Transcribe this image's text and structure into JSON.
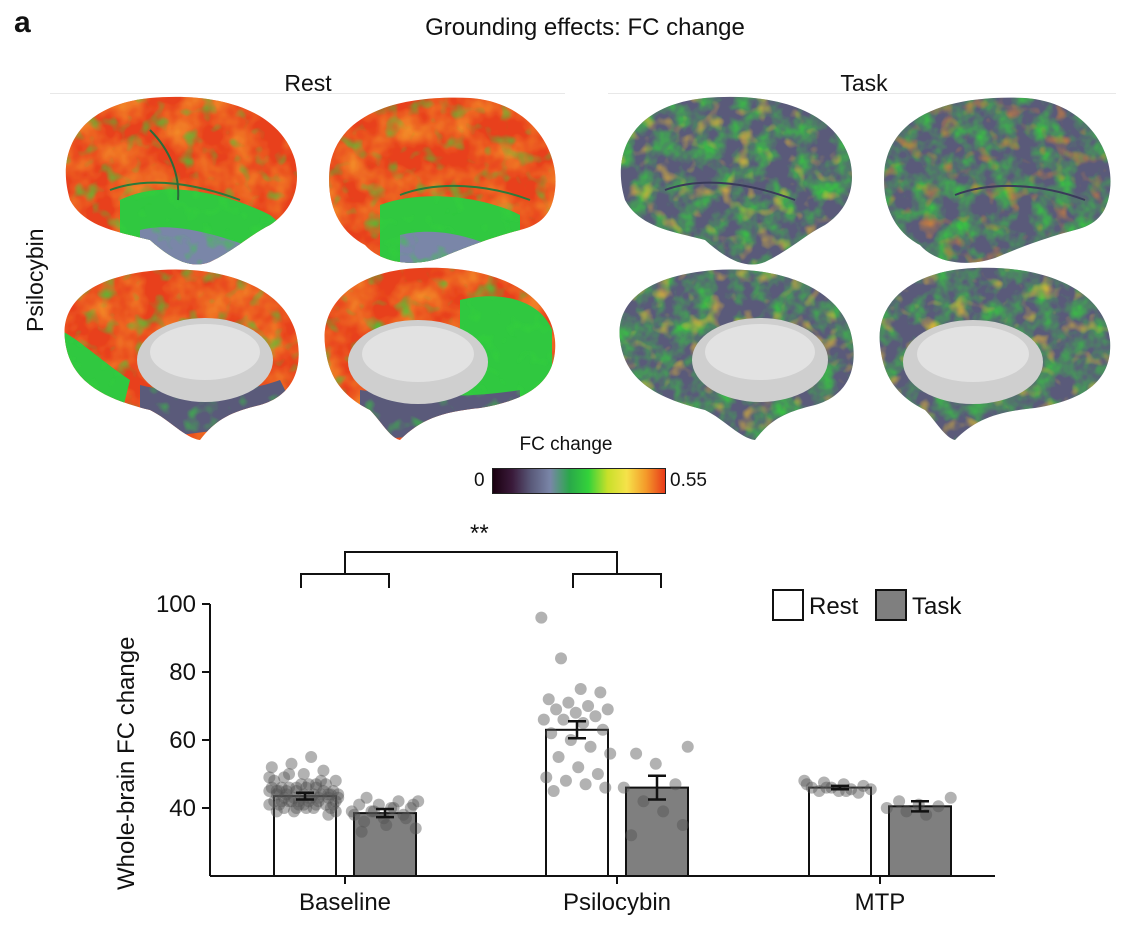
{
  "figure": {
    "panel_letter": "a",
    "title": "Grounding effects: FC change",
    "conditions": [
      "Rest",
      "Task"
    ],
    "row_label": "Psilocybin",
    "colorbar": {
      "title": "FC change",
      "min_label": "0",
      "max_label": "0.55",
      "stops": [
        "#1a0010",
        "#3a1a3a",
        "#5a5a7a",
        "#7a86a8",
        "#2aa84a",
        "#33d23a",
        "#c8e02a",
        "#f6e24a",
        "#f49a2a",
        "#e83a1a"
      ]
    },
    "significance": "**"
  },
  "chart_data": {
    "type": "bar",
    "ylabel": "Whole-brain FC change",
    "ylim": [
      20,
      100
    ],
    "yticks": [
      40,
      60,
      80,
      100
    ],
    "categories": [
      "Baseline",
      "Psilocybin",
      "MTP"
    ],
    "legend": {
      "position": "top-right",
      "entries": [
        "Rest",
        "Task"
      ]
    },
    "series": [
      {
        "name": "Rest",
        "color": "#ffffff",
        "values": [
          43.5,
          63,
          46
        ],
        "error": [
          1.0,
          2.5,
          0.5
        ]
      },
      {
        "name": "Task",
        "color": "#7f7f7f",
        "values": [
          38.5,
          46,
          40.5
        ],
        "error": [
          1.2,
          3.5,
          1.5
        ]
      }
    ],
    "points": {
      "Baseline": {
        "Rest": [
          41,
          42,
          43,
          44,
          45,
          46,
          47,
          48,
          49,
          50,
          51,
          52,
          53,
          55,
          40,
          41,
          42,
          43,
          44,
          45,
          46,
          47,
          48,
          39,
          40,
          41,
          42,
          43,
          44,
          45,
          46,
          47,
          38,
          39,
          40,
          41,
          42,
          43,
          44,
          45,
          46,
          42,
          43,
          44,
          45,
          41,
          42,
          43,
          44,
          40,
          41,
          42,
          43,
          44,
          45,
          46,
          47,
          48,
          49,
          50,
          42,
          43,
          44,
          45,
          46,
          39,
          40,
          41
        ],
        "Task": [
          34,
          36,
          37,
          38,
          39,
          39,
          40,
          40,
          41,
          41,
          42,
          42,
          43,
          35,
          37,
          38,
          39,
          40,
          41,
          33
        ]
      },
      "Psilocybin": {
        "Rest": [
          96,
          84,
          75,
          74,
          72,
          71,
          70,
          69,
          69,
          68,
          67,
          66,
          66,
          65,
          63,
          62,
          60,
          58,
          56,
          55,
          52,
          50,
          49,
          48,
          47,
          46,
          45
        ],
        "Task": [
          58,
          56,
          53,
          47,
          46,
          42,
          39,
          35,
          32
        ]
      },
      "MTP": {
        "Rest": [
          48,
          47.5,
          47,
          46.5,
          46,
          46,
          45.5,
          45.5,
          45,
          45,
          44.5,
          47,
          46,
          45
        ],
        "Task": [
          43,
          42,
          41,
          40.5,
          40,
          39,
          38
        ]
      }
    }
  }
}
